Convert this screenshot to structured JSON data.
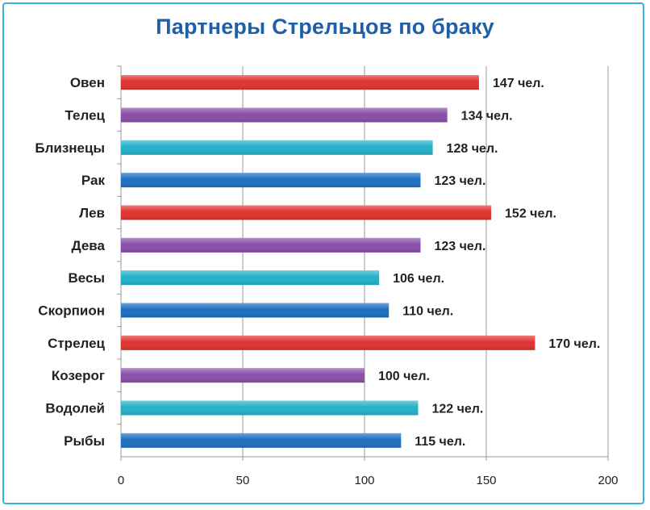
{
  "colors": {
    "red": "#e0332f",
    "purple": "#8a4ea8",
    "teal": "#23b1c9",
    "blue": "#1e6fc0",
    "title": "#1f5fa8",
    "border": "#35b6d6",
    "grid": "#9a9a9a"
  },
  "chart_data": {
    "type": "bar",
    "orientation": "horizontal",
    "title": "Партнеры Стрельцов по браку",
    "xlabel": "",
    "ylabel": "",
    "xlim": [
      0,
      200
    ],
    "x_ticks": [
      "0",
      "50",
      "100",
      "150",
      "200"
    ],
    "grid": true,
    "categories": [
      "Овен",
      "Телец",
      "Близнецы",
      "Рак",
      "Лев",
      "Дева",
      "Весы",
      "Скорпион",
      "Стрелец",
      "Козерог",
      "Водолей",
      "Рыбы"
    ],
    "values": [
      147,
      134,
      128,
      123,
      152,
      123,
      106,
      110,
      170,
      100,
      122,
      115
    ],
    "value_labels": [
      "147 чел.",
      "134 чел.",
      "128 чел.",
      "123 чел.",
      "152 чел.",
      "123 чел.",
      "106 чел.",
      "110 чел.",
      "170 чел.",
      "100 чел.",
      "122 чел.",
      "115 чел."
    ],
    "bar_colors": [
      "red",
      "purple",
      "teal",
      "blue",
      "red",
      "purple",
      "teal",
      "blue",
      "red",
      "purple",
      "teal",
      "blue"
    ]
  }
}
